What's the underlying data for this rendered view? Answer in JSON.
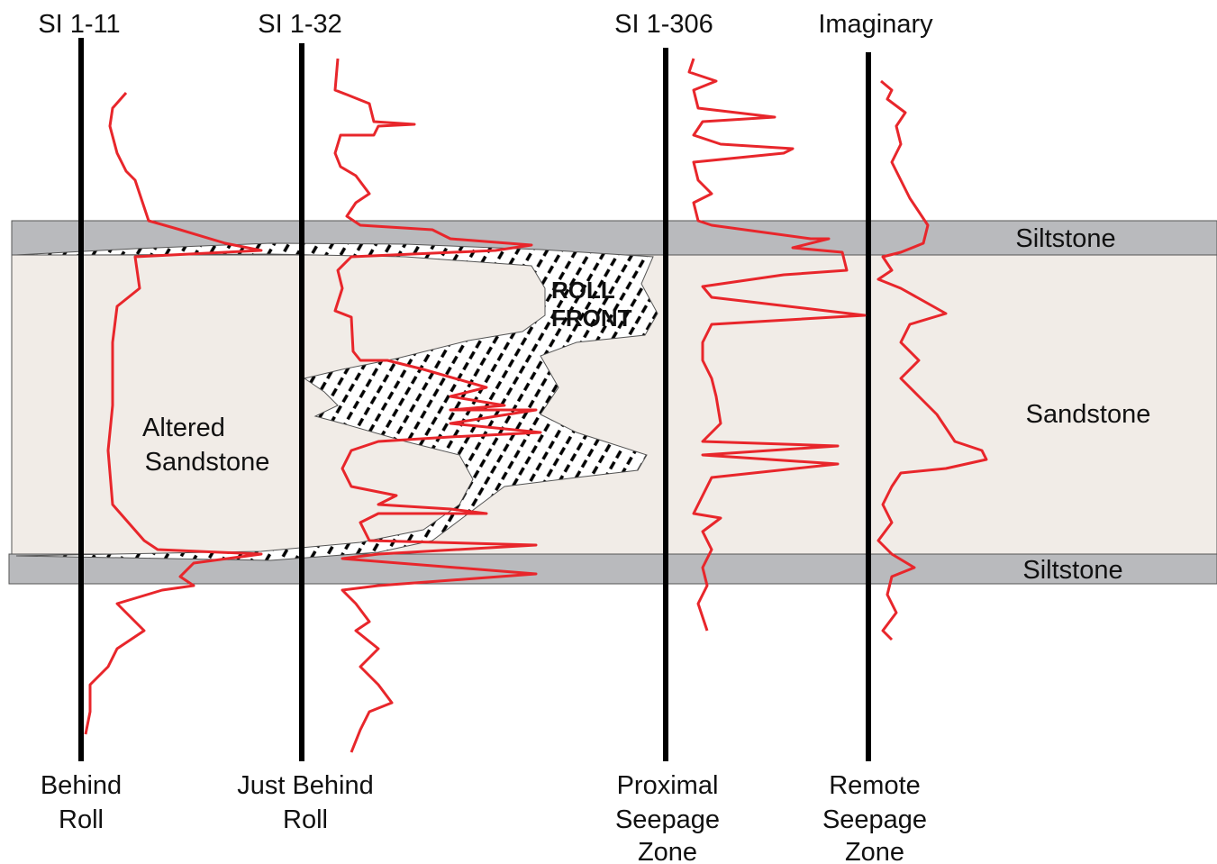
{
  "wells": [
    {
      "name": "SI 1-11",
      "zone": [
        "Behind",
        "Roll"
      ]
    },
    {
      "name": "SI 1-32",
      "zone": [
        "Just Behind",
        "Roll"
      ]
    },
    {
      "name": "SI 1-306",
      "zone": [
        "Proximal",
        "Seepage",
        "Zone"
      ]
    },
    {
      "name": "Imaginary",
      "zone": [
        "Remote",
        "Seepage",
        "Zone"
      ]
    }
  ],
  "layers": {
    "upper": "Siltstone",
    "middle": "Sandstone",
    "lower": "Siltstone"
  },
  "altered": [
    "Altered",
    "Sandstone"
  ],
  "roll_front": [
    "ROLL",
    "FRONT"
  ]
}
